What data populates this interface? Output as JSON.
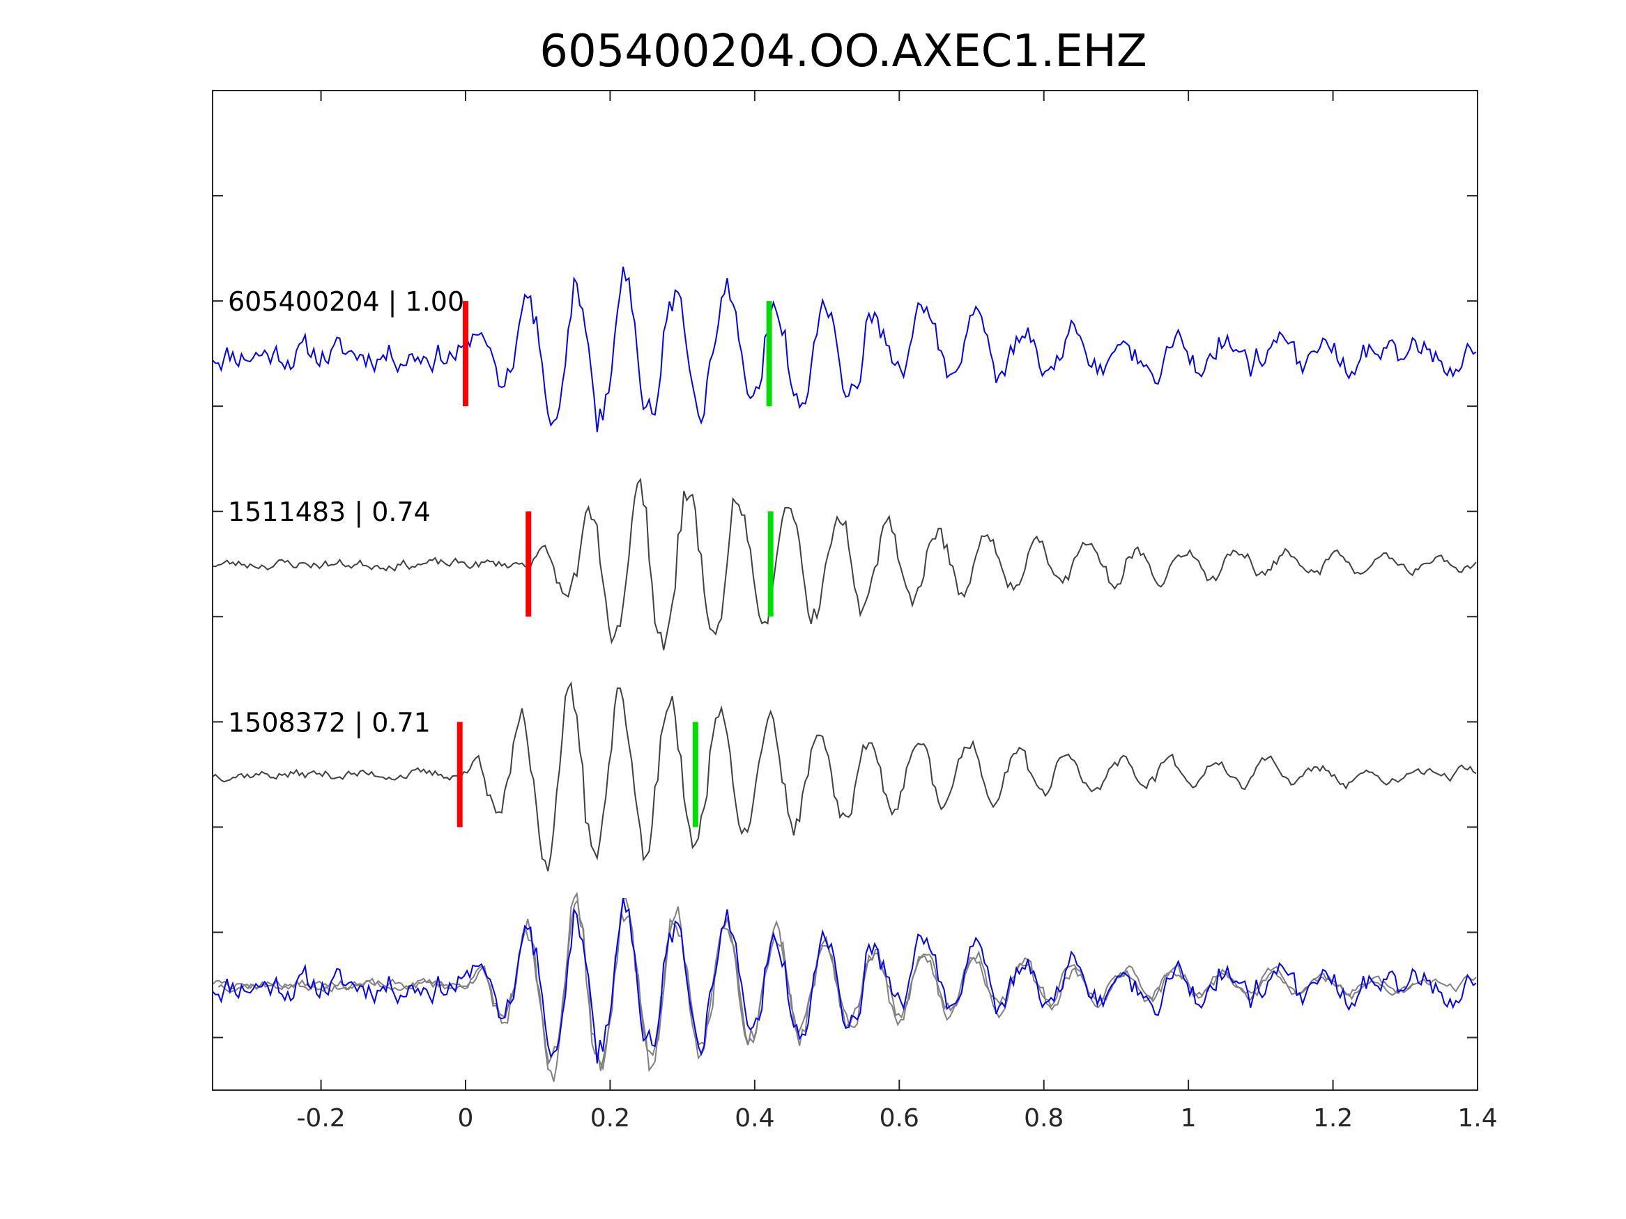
{
  "chart_data": {
    "type": "line",
    "title": "605400204.OO.AXEC1.EHZ",
    "xlabel": "",
    "ylabel": "",
    "xlim": [
      -0.35,
      1.4
    ],
    "ylim": [
      0.5,
      5.25
    ],
    "xticks": [
      -0.2,
      0,
      0.2,
      0.4,
      0.6,
      0.8,
      1,
      1.2,
      1.4
    ],
    "xtick_labels": [
      "-0.2",
      "0",
      "0.2",
      "0.4",
      "0.6",
      "0.8",
      "1",
      "1.2",
      "1.4"
    ],
    "yticks": [
      0.75,
      1.25,
      1.75,
      2.25,
      2.75,
      3.25,
      3.75,
      4.25,
      4.75
    ],
    "grid": false,
    "traces": [
      {
        "label": "605400204 | 1.00",
        "offset": 4,
        "color": "#0000ff",
        "p_pick": 0.0,
        "s_pick": 0.42,
        "p_time": 0.0,
        "decay": 0.5,
        "amp": 0.4,
        "noise": 0.06,
        "seed": 11
      },
      {
        "label": "1511483 | 0.74",
        "offset": 3,
        "color": "#404040",
        "p_pick": 0.087,
        "s_pick": 0.422,
        "p_time": 0.087,
        "decay": 0.42,
        "amp": 0.45,
        "noise": 0.02,
        "seed": 23
      },
      {
        "label": "1508372 | 0.71",
        "offset": 2,
        "color": "#404040",
        "p_pick": -0.008,
        "s_pick": 0.318,
        "p_time": -0.008,
        "decay": 0.45,
        "amp": 0.48,
        "noise": 0.02,
        "seed": 37
      }
    ],
    "stack": {
      "offset": 1,
      "series_colors": [
        "#808080",
        "#808080",
        "#0000ff"
      ]
    },
    "pick_colors": {
      "p": "#ff0000",
      "s": "#00dd00"
    }
  }
}
